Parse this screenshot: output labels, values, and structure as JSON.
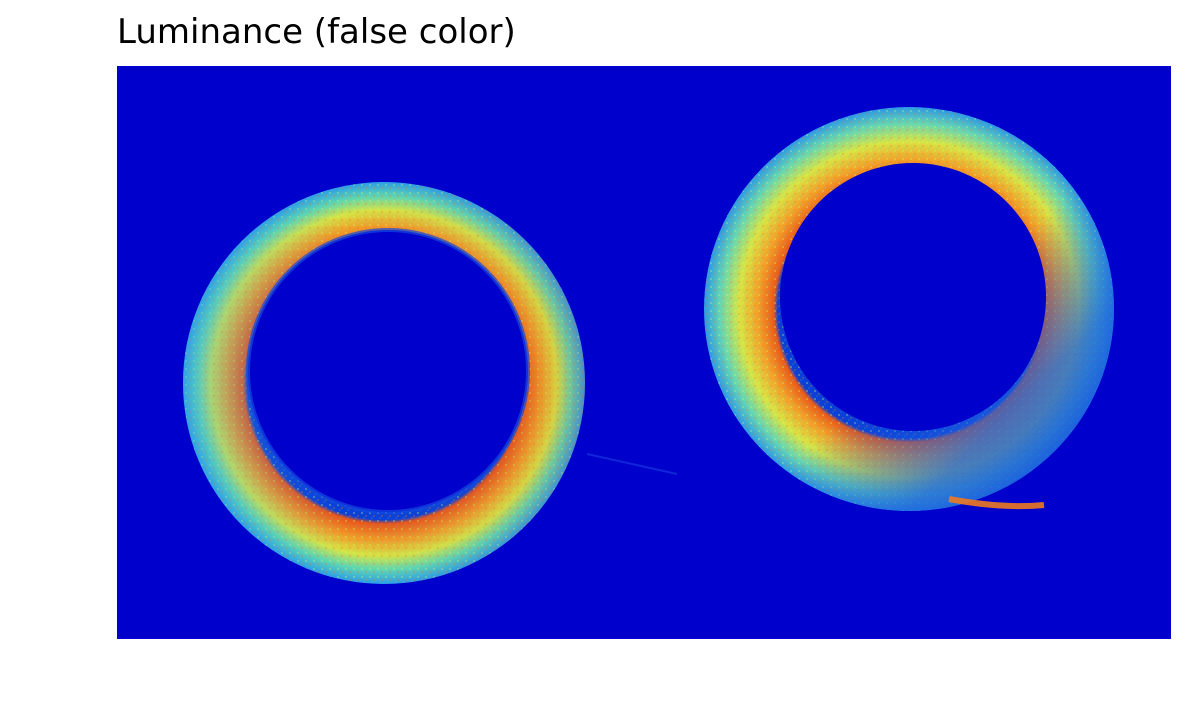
{
  "figure": {
    "title": "Luminance (false color)"
  },
  "image": {
    "subject": "two rings in false-color luminance",
    "colormap": "jet",
    "background_color": "#0000cc"
  }
}
